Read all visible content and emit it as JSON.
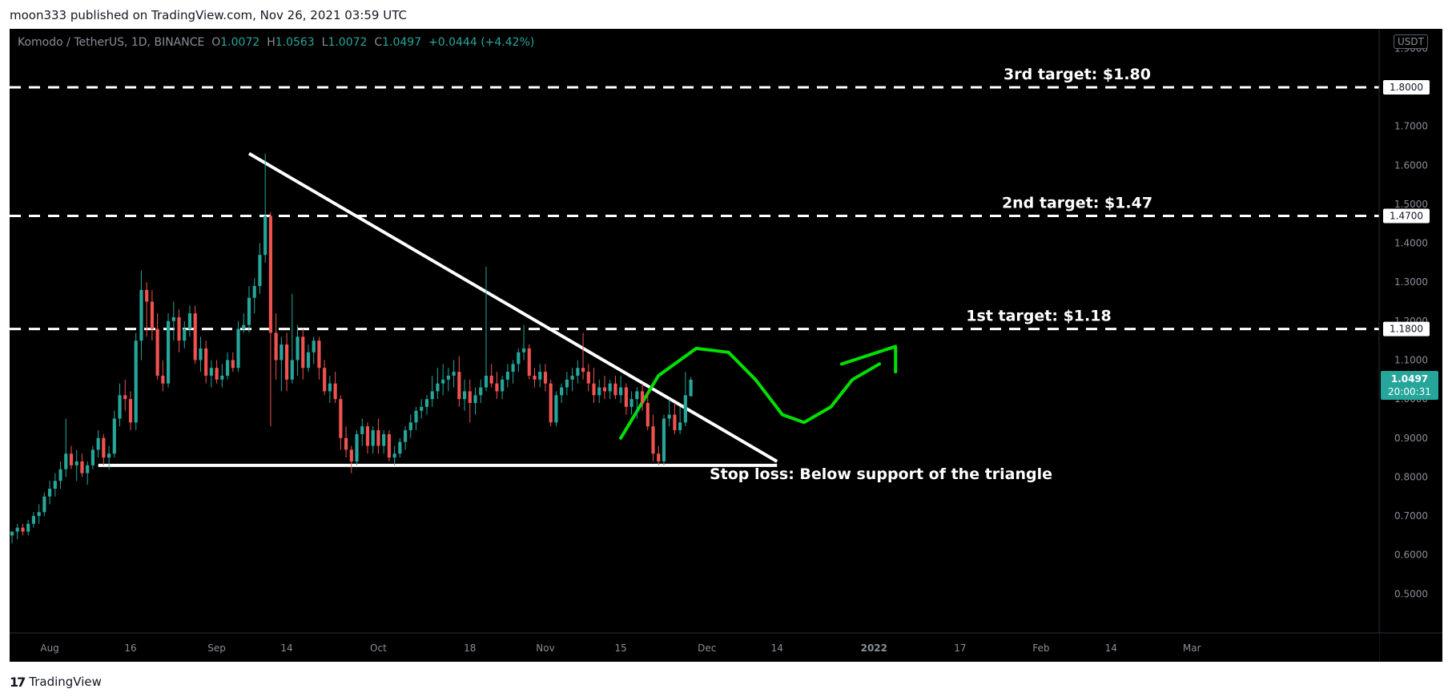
{
  "header": {
    "published_text": "moon333 published on TradingView.com, Nov 26, 2021 03:59 UTC"
  },
  "legend": {
    "symbol": "Komodo / TetherUS, 1D, BINANCE",
    "o_label": "O",
    "o_value": "1.0072",
    "h_label": "H",
    "h_value": "1.0563",
    "l_label": "L",
    "l_value": "1.0072",
    "c_label": "C",
    "c_value": "1.0497",
    "change": "+0.0444 (+4.42%)"
  },
  "currency_badge": "USDT",
  "footer": {
    "logo_glyph": "17",
    "brand": "TradingView"
  },
  "colors": {
    "background": "#000000",
    "up": "#26a69a",
    "down": "#ef5350",
    "annotation": "#ffffff",
    "projection": "#00e000",
    "axis_text": "#8a8e97"
  },
  "chart_data": {
    "type": "candlestick",
    "title": "",
    "ylim": [
      0.4,
      1.95
    ],
    "y_ticks": [
      "0.5000",
      "0.6000",
      "0.7000",
      "0.8000",
      "0.9000",
      "1.0000",
      "1.1000",
      "1.2000",
      "1.3000",
      "1.4000",
      "1.5000",
      "1.6000",
      "1.7000",
      "1.8000",
      "1.9000"
    ],
    "x_tick_labels": [
      "Aug",
      "16",
      "Sep",
      "14",
      "Oct",
      "18",
      "Nov",
      "15",
      "Dec",
      "14",
      "2022",
      "17",
      "Feb",
      "14",
      "Mar"
    ],
    "price_tags": [
      {
        "label": "1.8000",
        "value": 1.8
      },
      {
        "label": "1.4700",
        "value": 1.47
      },
      {
        "label": "1.1800",
        "value": 1.18
      }
    ],
    "last_price": {
      "value": 1.0497,
      "label": "1.0497",
      "countdown": "20:00:31"
    },
    "target_lines": [
      {
        "label": "3rd target: $1.80",
        "value": 1.8
      },
      {
        "label": "2nd target: $1.47",
        "value": 1.47
      },
      {
        "label": "1st target: $1.18",
        "value": 1.18
      }
    ],
    "stop_loss_label": "Stop loss: Below support of the triangle",
    "triangle": {
      "resistance": [
        {
          "date": "2021-09-07",
          "price": 1.63
        },
        {
          "date": "2021-12-14",
          "price": 0.84
        }
      ],
      "support": [
        {
          "date": "2021-08-10",
          "price": 0.83
        },
        {
          "date": "2021-12-14",
          "price": 0.83
        }
      ]
    },
    "candles": [
      {
        "date": "2021-07-25",
        "o": 0.65,
        "h": 0.66,
        "l": 0.63,
        "c": 0.66
      },
      {
        "date": "2021-07-26",
        "o": 0.66,
        "h": 0.68,
        "l": 0.64,
        "c": 0.67
      },
      {
        "date": "2021-07-27",
        "o": 0.67,
        "h": 0.68,
        "l": 0.65,
        "c": 0.66
      },
      {
        "date": "2021-07-28",
        "o": 0.66,
        "h": 0.69,
        "l": 0.65,
        "c": 0.68
      },
      {
        "date": "2021-07-29",
        "o": 0.68,
        "h": 0.71,
        "l": 0.67,
        "c": 0.7
      },
      {
        "date": "2021-07-30",
        "o": 0.7,
        "h": 0.73,
        "l": 0.68,
        "c": 0.71
      },
      {
        "date": "2021-07-31",
        "o": 0.71,
        "h": 0.76,
        "l": 0.7,
        "c": 0.75
      },
      {
        "date": "2021-08-01",
        "o": 0.75,
        "h": 0.79,
        "l": 0.73,
        "c": 0.77
      },
      {
        "date": "2021-08-02",
        "o": 0.77,
        "h": 0.81,
        "l": 0.75,
        "c": 0.79
      },
      {
        "date": "2021-08-03",
        "o": 0.79,
        "h": 0.84,
        "l": 0.77,
        "c": 0.82
      },
      {
        "date": "2021-08-04",
        "o": 0.82,
        "h": 0.95,
        "l": 0.8,
        "c": 0.86
      },
      {
        "date": "2021-08-05",
        "o": 0.86,
        "h": 0.88,
        "l": 0.82,
        "c": 0.83
      },
      {
        "date": "2021-08-06",
        "o": 0.83,
        "h": 0.87,
        "l": 0.79,
        "c": 0.84
      },
      {
        "date": "2021-08-07",
        "o": 0.84,
        "h": 0.86,
        "l": 0.8,
        "c": 0.81
      },
      {
        "date": "2021-08-08",
        "o": 0.81,
        "h": 0.84,
        "l": 0.78,
        "c": 0.83
      },
      {
        "date": "2021-08-09",
        "o": 0.83,
        "h": 0.88,
        "l": 0.82,
        "c": 0.87
      },
      {
        "date": "2021-08-10",
        "o": 0.87,
        "h": 0.92,
        "l": 0.85,
        "c": 0.9
      },
      {
        "date": "2021-08-11",
        "o": 0.9,
        "h": 0.91,
        "l": 0.83,
        "c": 0.85
      },
      {
        "date": "2021-08-12",
        "o": 0.85,
        "h": 0.88,
        "l": 0.82,
        "c": 0.86
      },
      {
        "date": "2021-08-13",
        "o": 0.86,
        "h": 0.97,
        "l": 0.85,
        "c": 0.95
      },
      {
        "date": "2021-08-14",
        "o": 0.95,
        "h": 1.04,
        "l": 0.93,
        "c": 1.01
      },
      {
        "date": "2021-08-15",
        "o": 1.01,
        "h": 1.05,
        "l": 0.97,
        "c": 1.0
      },
      {
        "date": "2021-08-16",
        "o": 1.0,
        "h": 1.02,
        "l": 0.92,
        "c": 0.94
      },
      {
        "date": "2021-08-17",
        "o": 0.94,
        "h": 1.17,
        "l": 0.92,
        "c": 1.15
      },
      {
        "date": "2021-08-18",
        "o": 1.15,
        "h": 1.33,
        "l": 1.1,
        "c": 1.28
      },
      {
        "date": "2021-08-19",
        "o": 1.28,
        "h": 1.3,
        "l": 1.16,
        "c": 1.25
      },
      {
        "date": "2021-08-20",
        "o": 1.25,
        "h": 1.28,
        "l": 1.15,
        "c": 1.18
      },
      {
        "date": "2021-08-21",
        "o": 1.18,
        "h": 1.22,
        "l": 1.05,
        "c": 1.06
      },
      {
        "date": "2021-08-22",
        "o": 1.06,
        "h": 1.1,
        "l": 1.02,
        "c": 1.04
      },
      {
        "date": "2021-08-23",
        "o": 1.04,
        "h": 1.22,
        "l": 1.03,
        "c": 1.2
      },
      {
        "date": "2021-08-24",
        "o": 1.2,
        "h": 1.25,
        "l": 1.15,
        "c": 1.21
      },
      {
        "date": "2021-08-25",
        "o": 1.21,
        "h": 1.23,
        "l": 1.12,
        "c": 1.15
      },
      {
        "date": "2021-08-26",
        "o": 1.15,
        "h": 1.2,
        "l": 1.13,
        "c": 1.18
      },
      {
        "date": "2021-08-27",
        "o": 1.18,
        "h": 1.24,
        "l": 1.16,
        "c": 1.22
      },
      {
        "date": "2021-08-28",
        "o": 1.22,
        "h": 1.24,
        "l": 1.09,
        "c": 1.1
      },
      {
        "date": "2021-08-29",
        "o": 1.1,
        "h": 1.16,
        "l": 1.07,
        "c": 1.13
      },
      {
        "date": "2021-08-30",
        "o": 1.13,
        "h": 1.15,
        "l": 1.04,
        "c": 1.06
      },
      {
        "date": "2021-08-31",
        "o": 1.06,
        "h": 1.1,
        "l": 1.03,
        "c": 1.08
      },
      {
        "date": "2021-09-01",
        "o": 1.08,
        "h": 1.1,
        "l": 1.04,
        "c": 1.05
      },
      {
        "date": "2021-09-02",
        "o": 1.05,
        "h": 1.09,
        "l": 1.03,
        "c": 1.06
      },
      {
        "date": "2021-09-03",
        "o": 1.06,
        "h": 1.12,
        "l": 1.05,
        "c": 1.1
      },
      {
        "date": "2021-09-04",
        "o": 1.1,
        "h": 1.12,
        "l": 1.07,
        "c": 1.08
      },
      {
        "date": "2021-09-05",
        "o": 1.08,
        "h": 1.2,
        "l": 1.07,
        "c": 1.18
      },
      {
        "date": "2021-09-06",
        "o": 1.18,
        "h": 1.22,
        "l": 1.17,
        "c": 1.19
      },
      {
        "date": "2021-09-07",
        "o": 1.19,
        "h": 1.29,
        "l": 1.17,
        "c": 1.26
      },
      {
        "date": "2021-09-08",
        "o": 1.26,
        "h": 1.31,
        "l": 1.22,
        "c": 1.29
      },
      {
        "date": "2021-09-09",
        "o": 1.29,
        "h": 1.4,
        "l": 1.27,
        "c": 1.37
      },
      {
        "date": "2021-09-10",
        "o": 1.37,
        "h": 1.63,
        "l": 1.35,
        "c": 1.47
      },
      {
        "date": "2021-09-11",
        "o": 1.47,
        "h": 1.48,
        "l": 0.93,
        "c": 1.17
      },
      {
        "date": "2021-09-12",
        "o": 1.17,
        "h": 1.22,
        "l": 1.05,
        "c": 1.1
      },
      {
        "date": "2021-09-13",
        "o": 1.1,
        "h": 1.16,
        "l": 1.02,
        "c": 1.14
      },
      {
        "date": "2021-09-14",
        "o": 1.14,
        "h": 1.17,
        "l": 1.02,
        "c": 1.05
      },
      {
        "date": "2021-09-15",
        "o": 1.05,
        "h": 1.27,
        "l": 1.04,
        "c": 1.1
      },
      {
        "date": "2021-09-16",
        "o": 1.1,
        "h": 1.19,
        "l": 1.06,
        "c": 1.16
      },
      {
        "date": "2021-09-17",
        "o": 1.16,
        "h": 1.18,
        "l": 1.05,
        "c": 1.08
      },
      {
        "date": "2021-09-18",
        "o": 1.08,
        "h": 1.14,
        "l": 1.07,
        "c": 1.12
      },
      {
        "date": "2021-09-19",
        "o": 1.12,
        "h": 1.16,
        "l": 1.09,
        "c": 1.15
      },
      {
        "date": "2021-09-20",
        "o": 1.15,
        "h": 1.16,
        "l": 1.05,
        "c": 1.08
      },
      {
        "date": "2021-09-21",
        "o": 1.08,
        "h": 1.1,
        "l": 1.01,
        "c": 1.02
      },
      {
        "date": "2021-09-22",
        "o": 1.02,
        "h": 1.06,
        "l": 0.99,
        "c": 1.04
      },
      {
        "date": "2021-09-23",
        "o": 1.04,
        "h": 1.07,
        "l": 0.99,
        "c": 1.0
      },
      {
        "date": "2021-09-24",
        "o": 1.0,
        "h": 1.01,
        "l": 0.87,
        "c": 0.9
      },
      {
        "date": "2021-09-25",
        "o": 0.9,
        "h": 0.93,
        "l": 0.85,
        "c": 0.87
      },
      {
        "date": "2021-09-26",
        "o": 0.87,
        "h": 0.88,
        "l": 0.81,
        "c": 0.84
      },
      {
        "date": "2021-09-27",
        "o": 0.84,
        "h": 0.92,
        "l": 0.83,
        "c": 0.91
      },
      {
        "date": "2021-09-28",
        "o": 0.91,
        "h": 0.95,
        "l": 0.88,
        "c": 0.93
      },
      {
        "date": "2021-09-29",
        "o": 0.93,
        "h": 0.94,
        "l": 0.86,
        "c": 0.88
      },
      {
        "date": "2021-09-30",
        "o": 0.88,
        "h": 0.93,
        "l": 0.86,
        "c": 0.92
      },
      {
        "date": "2021-10-01",
        "o": 0.92,
        "h": 0.95,
        "l": 0.86,
        "c": 0.88
      },
      {
        "date": "2021-10-02",
        "o": 0.88,
        "h": 0.92,
        "l": 0.86,
        "c": 0.91
      },
      {
        "date": "2021-10-03",
        "o": 0.91,
        "h": 0.92,
        "l": 0.84,
        "c": 0.85
      },
      {
        "date": "2021-10-04",
        "o": 0.85,
        "h": 0.88,
        "l": 0.83,
        "c": 0.86
      },
      {
        "date": "2021-10-05",
        "o": 0.86,
        "h": 0.9,
        "l": 0.85,
        "c": 0.89
      },
      {
        "date": "2021-10-06",
        "o": 0.89,
        "h": 0.93,
        "l": 0.87,
        "c": 0.92
      },
      {
        "date": "2021-10-07",
        "o": 0.92,
        "h": 0.96,
        "l": 0.9,
        "c": 0.94
      },
      {
        "date": "2021-10-08",
        "o": 0.94,
        "h": 0.98,
        "l": 0.92,
        "c": 0.97
      },
      {
        "date": "2021-10-09",
        "o": 0.97,
        "h": 1.0,
        "l": 0.95,
        "c": 0.98
      },
      {
        "date": "2021-10-10",
        "o": 0.98,
        "h": 1.01,
        "l": 0.96,
        "c": 1.0
      },
      {
        "date": "2021-10-11",
        "o": 1.0,
        "h": 1.06,
        "l": 0.98,
        "c": 1.02
      },
      {
        "date": "2021-10-12",
        "o": 1.02,
        "h": 1.08,
        "l": 1.0,
        "c": 1.04
      },
      {
        "date": "2021-10-13",
        "o": 1.04,
        "h": 1.09,
        "l": 1.01,
        "c": 1.05
      },
      {
        "date": "2021-10-14",
        "o": 1.05,
        "h": 1.08,
        "l": 1.02,
        "c": 1.06
      },
      {
        "date": "2021-10-15",
        "o": 1.06,
        "h": 1.1,
        "l": 1.03,
        "c": 1.07
      },
      {
        "date": "2021-10-16",
        "o": 1.07,
        "h": 1.11,
        "l": 0.98,
        "c": 1.0
      },
      {
        "date": "2021-10-17",
        "o": 1.0,
        "h": 1.05,
        "l": 0.97,
        "c": 1.02
      },
      {
        "date": "2021-10-18",
        "o": 1.02,
        "h": 1.05,
        "l": 0.94,
        "c": 0.99
      },
      {
        "date": "2021-10-19",
        "o": 0.99,
        "h": 1.03,
        "l": 0.96,
        "c": 1.01
      },
      {
        "date": "2021-10-20",
        "o": 1.01,
        "h": 1.05,
        "l": 0.99,
        "c": 1.03
      },
      {
        "date": "2021-10-21",
        "o": 1.03,
        "h": 1.34,
        "l": 1.02,
        "c": 1.06
      },
      {
        "date": "2021-10-22",
        "o": 1.06,
        "h": 1.09,
        "l": 1.03,
        "c": 1.04
      },
      {
        "date": "2021-10-23",
        "o": 1.04,
        "h": 1.07,
        "l": 1.0,
        "c": 1.02
      },
      {
        "date": "2021-10-24",
        "o": 1.02,
        "h": 1.06,
        "l": 1.0,
        "c": 1.05
      },
      {
        "date": "2021-10-25",
        "o": 1.05,
        "h": 1.09,
        "l": 1.03,
        "c": 1.07
      },
      {
        "date": "2021-10-26",
        "o": 1.07,
        "h": 1.1,
        "l": 1.04,
        "c": 1.09
      },
      {
        "date": "2021-10-27",
        "o": 1.09,
        "h": 1.13,
        "l": 1.07,
        "c": 1.12
      },
      {
        "date": "2021-10-28",
        "o": 1.12,
        "h": 1.19,
        "l": 1.1,
        "c": 1.13
      },
      {
        "date": "2021-10-29",
        "o": 1.13,
        "h": 1.14,
        "l": 1.05,
        "c": 1.06
      },
      {
        "date": "2021-10-30",
        "o": 1.06,
        "h": 1.08,
        "l": 1.03,
        "c": 1.05
      },
      {
        "date": "2021-10-31",
        "o": 1.05,
        "h": 1.09,
        "l": 1.03,
        "c": 1.07
      },
      {
        "date": "2021-11-01",
        "o": 1.07,
        "h": 1.09,
        "l": 1.02,
        "c": 1.04
      },
      {
        "date": "2021-11-02",
        "o": 1.04,
        "h": 1.05,
        "l": 0.93,
        "c": 0.94
      },
      {
        "date": "2021-11-03",
        "o": 0.94,
        "h": 1.02,
        "l": 0.93,
        "c": 1.01
      },
      {
        "date": "2021-11-04",
        "o": 1.01,
        "h": 1.04,
        "l": 0.99,
        "c": 1.03
      },
      {
        "date": "2021-11-05",
        "o": 1.03,
        "h": 1.07,
        "l": 1.01,
        "c": 1.05
      },
      {
        "date": "2021-11-06",
        "o": 1.05,
        "h": 1.08,
        "l": 1.02,
        "c": 1.06
      },
      {
        "date": "2021-11-07",
        "o": 1.06,
        "h": 1.1,
        "l": 1.04,
        "c": 1.08
      },
      {
        "date": "2021-11-08",
        "o": 1.08,
        "h": 1.17,
        "l": 1.05,
        "c": 1.07
      },
      {
        "date": "2021-11-09",
        "o": 1.07,
        "h": 1.09,
        "l": 1.02,
        "c": 1.04
      },
      {
        "date": "2021-11-10",
        "o": 1.04,
        "h": 1.08,
        "l": 0.99,
        "c": 1.01
      },
      {
        "date": "2021-11-11",
        "o": 1.01,
        "h": 1.05,
        "l": 0.99,
        "c": 1.03
      },
      {
        "date": "2021-11-12",
        "o": 1.03,
        "h": 1.06,
        "l": 1.0,
        "c": 1.02
      },
      {
        "date": "2021-11-13",
        "o": 1.02,
        "h": 1.05,
        "l": 1.0,
        "c": 1.04
      },
      {
        "date": "2021-11-14",
        "o": 1.04,
        "h": 1.06,
        "l": 1.0,
        "c": 1.01
      },
      {
        "date": "2021-11-15",
        "o": 1.01,
        "h": 1.06,
        "l": 0.99,
        "c": 1.03
      },
      {
        "date": "2021-11-16",
        "o": 1.03,
        "h": 1.04,
        "l": 0.96,
        "c": 0.98
      },
      {
        "date": "2021-11-17",
        "o": 0.98,
        "h": 1.02,
        "l": 0.96,
        "c": 1.0
      },
      {
        "date": "2021-11-18",
        "o": 1.0,
        "h": 1.03,
        "l": 0.95,
        "c": 1.02
      },
      {
        "date": "2021-11-19",
        "o": 1.02,
        "h": 1.04,
        "l": 0.97,
        "c": 0.99
      },
      {
        "date": "2021-11-20",
        "o": 0.99,
        "h": 1.02,
        "l": 0.92,
        "c": 0.93
      },
      {
        "date": "2021-11-21",
        "o": 0.93,
        "h": 0.96,
        "l": 0.84,
        "c": 0.86
      },
      {
        "date": "2021-11-22",
        "o": 0.86,
        "h": 0.88,
        "l": 0.83,
        "c": 0.84
      },
      {
        "date": "2021-11-23",
        "o": 0.84,
        "h": 0.96,
        "l": 0.83,
        "c": 0.95
      },
      {
        "date": "2021-11-24",
        "o": 0.95,
        "h": 1.0,
        "l": 0.93,
        "c": 0.96
      },
      {
        "date": "2021-11-25",
        "o": 0.96,
        "h": 0.99,
        "l": 0.91,
        "c": 0.92
      },
      {
        "date": "2021-11-26",
        "o": 0.92,
        "h": 0.98,
        "l": 0.91,
        "c": 0.94
      },
      {
        "date": "2021-11-27",
        "o": 0.94,
        "h": 1.07,
        "l": 0.93,
        "c": 1.01
      },
      {
        "date": "2021-11-28",
        "o": 1.0072,
        "h": 1.0563,
        "l": 1.0072,
        "c": 1.0497
      }
    ]
  }
}
